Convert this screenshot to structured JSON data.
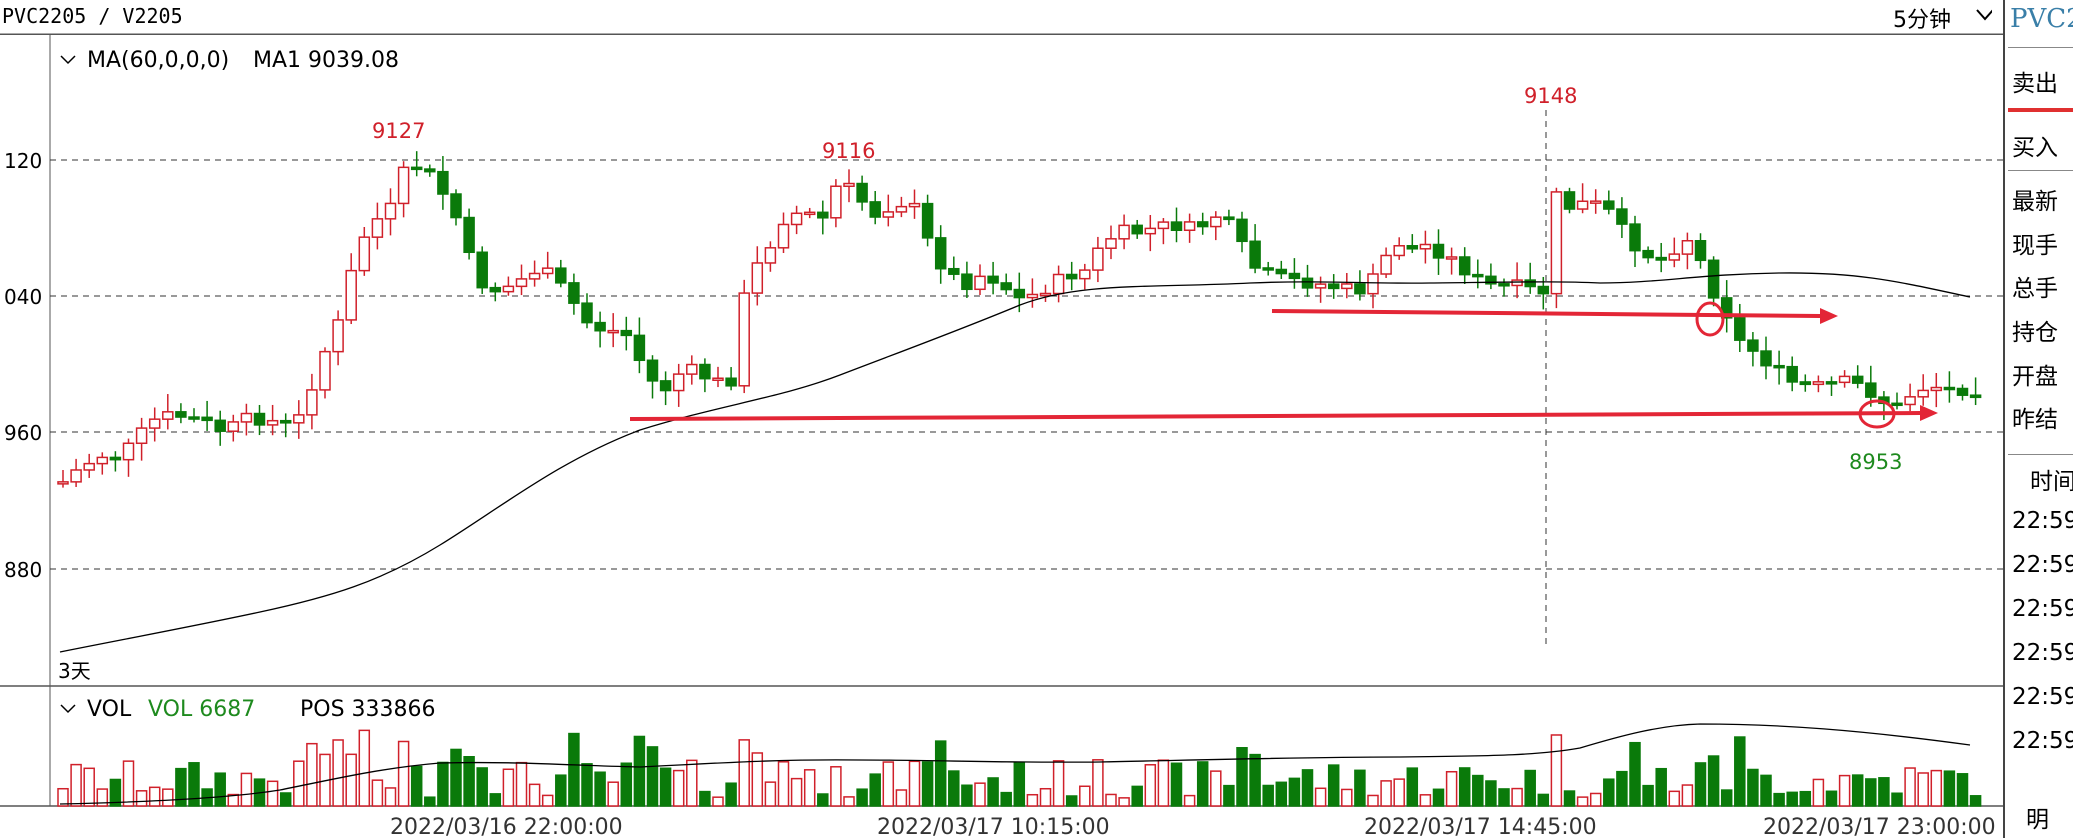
{
  "header": {
    "symbol": "PVC2205 / V2205",
    "period": "5分钟"
  },
  "main_panel": {
    "indicator_name": "MA(60,0,0,0)",
    "indicator_value": "MA1 9039.08",
    "span_label": "3天",
    "y_labels": [
      "120",
      "040",
      "960",
      "880"
    ],
    "annotations": {
      "high1": "9127",
      "high2": "9116",
      "high3": "9148",
      "low": "8953"
    }
  },
  "vol_panel": {
    "name": "VOL",
    "vol_value": "VOL 6687",
    "pos_value": "POS 333866"
  },
  "x_axis": {
    "labels": [
      "2022/03/16 22:00:00",
      "2022/03/17 10:15:00",
      "2022/03/17 14:45:00",
      "2022/03/17 23:00:00"
    ]
  },
  "right_panel": {
    "title": "PVC2",
    "fields": [
      "卖出",
      "买入",
      "最新",
      "现手",
      "总手",
      "持仓",
      "开盘",
      "昨结"
    ],
    "time_header": "时间",
    "times": [
      "22:59",
      "22:59",
      "22:59",
      "22:59",
      "22:59",
      "22:59"
    ],
    "tab": "明"
  },
  "colors": {
    "up": "#d0202a",
    "down": "#0a7a0a",
    "annotation_line": "#e32636",
    "low_label": "#1e8a1e"
  }
}
